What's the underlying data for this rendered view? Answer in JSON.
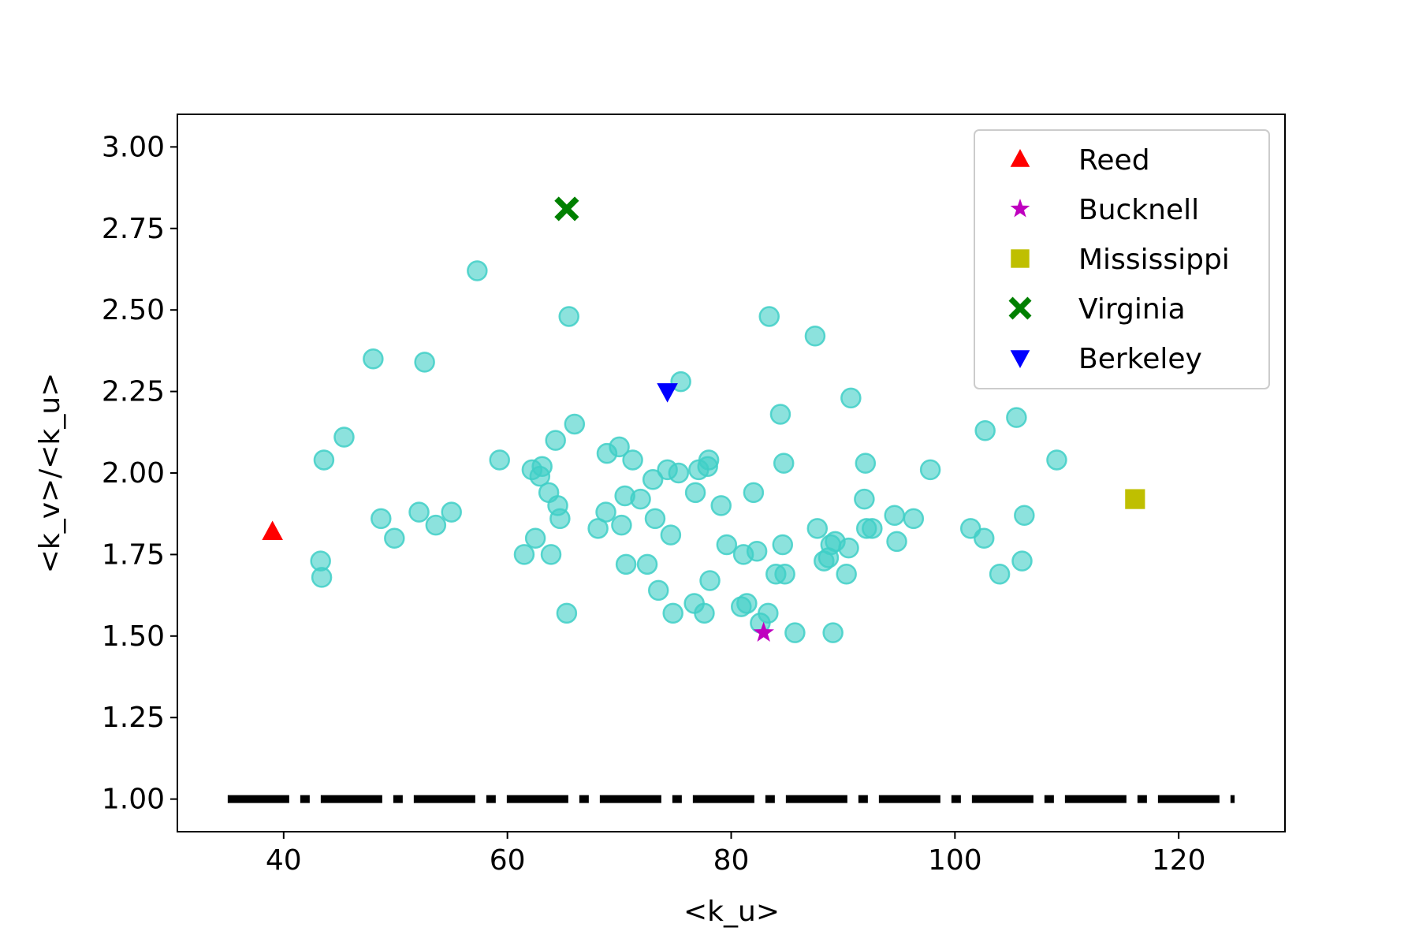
{
  "chart_data": {
    "type": "scatter",
    "title": "",
    "xlabel": "<k_u>",
    "ylabel": "<k_v>/<k_u>",
    "xlim": [
      30.5,
      129.5
    ],
    "ylim": [
      0.9,
      3.1
    ],
    "xticks": [
      40,
      60,
      80,
      100,
      120
    ],
    "yticks": [
      1.0,
      1.25,
      1.5,
      1.75,
      2.0,
      2.25,
      2.5,
      2.75,
      3.0
    ],
    "xtick_labels": [
      "40",
      "60",
      "80",
      "100",
      "120"
    ],
    "ytick_labels": [
      "1.00",
      "1.25",
      "1.50",
      "1.75",
      "2.00",
      "2.25",
      "2.50",
      "2.75",
      "3.00"
    ],
    "grid": false,
    "legend_position": "top-right",
    "reference_line": {
      "y": 1.0,
      "x_start": 35,
      "x_end": 125,
      "style": "dash-dot",
      "color": "#000000"
    },
    "background_points": {
      "color": "#40cfc7",
      "points": [
        [
          43.3,
          1.73
        ],
        [
          43.4,
          1.68
        ],
        [
          43.6,
          2.04
        ],
        [
          45.4,
          2.11
        ],
        [
          48.0,
          2.35
        ],
        [
          48.7,
          1.86
        ],
        [
          49.9,
          1.8
        ],
        [
          52.1,
          1.88
        ],
        [
          52.6,
          2.34
        ],
        [
          53.6,
          1.84
        ],
        [
          55.0,
          1.88
        ],
        [
          57.3,
          2.62
        ],
        [
          59.3,
          2.04
        ],
        [
          61.5,
          1.75
        ],
        [
          62.2,
          2.01
        ],
        [
          62.5,
          1.8
        ],
        [
          62.9,
          1.99
        ],
        [
          63.1,
          2.02
        ],
        [
          63.7,
          1.94
        ],
        [
          63.9,
          1.75
        ],
        [
          64.3,
          2.1
        ],
        [
          64.5,
          1.9
        ],
        [
          64.7,
          1.86
        ],
        [
          65.3,
          1.57
        ],
        [
          65.5,
          2.48
        ],
        [
          66.0,
          2.15
        ],
        [
          68.1,
          1.83
        ],
        [
          68.8,
          1.88
        ],
        [
          68.9,
          2.06
        ],
        [
          70.0,
          2.08
        ],
        [
          70.2,
          1.84
        ],
        [
          70.5,
          1.93
        ],
        [
          70.6,
          1.72
        ],
        [
          71.2,
          2.04
        ],
        [
          71.9,
          1.92
        ],
        [
          72.5,
          1.72
        ],
        [
          73.0,
          1.98
        ],
        [
          73.2,
          1.86
        ],
        [
          73.5,
          1.64
        ],
        [
          74.3,
          2.01
        ],
        [
          74.6,
          1.81
        ],
        [
          74.8,
          1.57
        ],
        [
          75.3,
          2.0
        ],
        [
          75.5,
          2.28
        ],
        [
          76.7,
          1.6
        ],
        [
          76.8,
          1.94
        ],
        [
          77.1,
          2.01
        ],
        [
          77.6,
          1.57
        ],
        [
          77.9,
          2.02
        ],
        [
          78.0,
          2.04
        ],
        [
          78.1,
          1.67
        ],
        [
          79.1,
          1.9
        ],
        [
          79.6,
          1.78
        ],
        [
          80.9,
          1.59
        ],
        [
          81.1,
          1.75
        ],
        [
          81.4,
          1.6
        ],
        [
          82.0,
          1.94
        ],
        [
          82.3,
          1.76
        ],
        [
          82.6,
          1.54
        ],
        [
          83.3,
          1.57
        ],
        [
          83.4,
          2.48
        ],
        [
          84.0,
          1.69
        ],
        [
          84.4,
          2.18
        ],
        [
          84.6,
          1.78
        ],
        [
          84.7,
          2.03
        ],
        [
          84.8,
          1.69
        ],
        [
          85.7,
          1.51
        ],
        [
          87.5,
          2.42
        ],
        [
          87.7,
          1.83
        ],
        [
          88.3,
          1.73
        ],
        [
          88.7,
          1.74
        ],
        [
          88.9,
          1.78
        ],
        [
          89.1,
          1.51
        ],
        [
          89.3,
          1.79
        ],
        [
          90.3,
          1.69
        ],
        [
          90.5,
          1.77
        ],
        [
          90.7,
          2.23
        ],
        [
          91.9,
          1.92
        ],
        [
          92.0,
          2.03
        ],
        [
          92.1,
          1.83
        ],
        [
          92.6,
          1.83
        ],
        [
          94.6,
          1.87
        ],
        [
          94.8,
          1.79
        ],
        [
          96.3,
          1.86
        ],
        [
          97.8,
          2.01
        ],
        [
          101.4,
          1.83
        ],
        [
          102.6,
          1.8
        ],
        [
          102.7,
          2.13
        ],
        [
          104.0,
          1.69
        ],
        [
          105.5,
          2.17
        ],
        [
          106.0,
          1.73
        ],
        [
          106.2,
          1.87
        ],
        [
          109.1,
          2.04
        ]
      ]
    },
    "series": [
      {
        "name": "Reed",
        "marker": "triangle-up",
        "color": "#ff0000",
        "x": [
          39.0
        ],
        "y": [
          1.82
        ]
      },
      {
        "name": "Bucknell",
        "marker": "star",
        "color": "#bf00bf",
        "x": [
          82.9
        ],
        "y": [
          1.51
        ]
      },
      {
        "name": "Mississippi",
        "marker": "square",
        "color": "#bfbf00",
        "x": [
          116.1
        ],
        "y": [
          1.92
        ]
      },
      {
        "name": "Virginia",
        "marker": "x-filled",
        "color": "#008000",
        "x": [
          65.3
        ],
        "y": [
          2.81
        ]
      },
      {
        "name": "Berkeley",
        "marker": "triangle-down",
        "color": "#0000ff",
        "x": [
          74.3
        ],
        "y": [
          2.25
        ]
      }
    ]
  }
}
